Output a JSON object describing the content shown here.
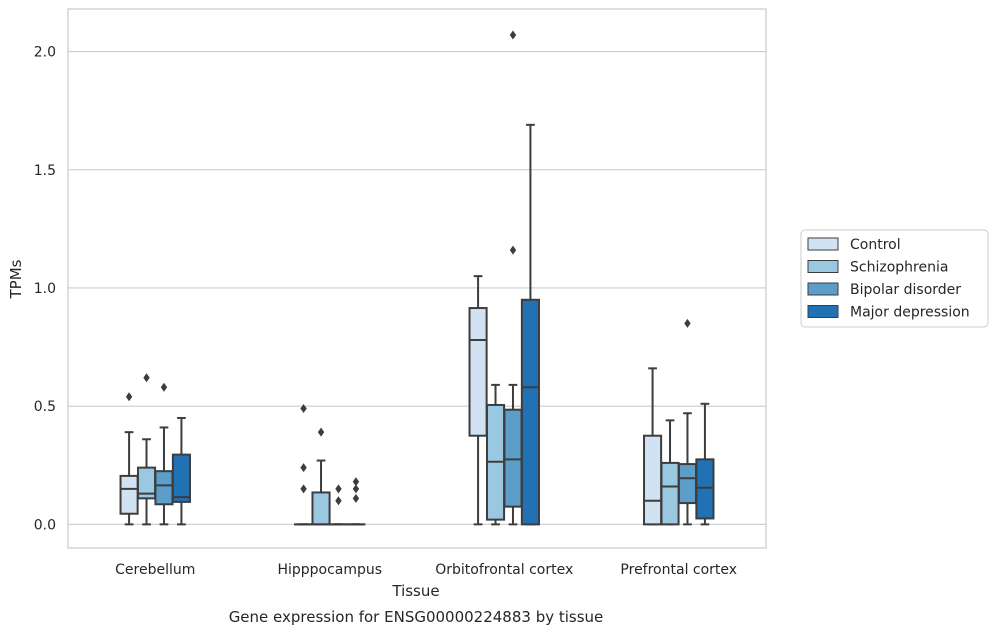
{
  "caption": "Gene expression for ENSG00000224883 by tissue",
  "chart_data": {
    "type": "box",
    "xlabel": "Tissue",
    "ylabel": "TPMs",
    "ylim": [
      -0.1,
      2.18
    ],
    "yticks": [
      0.0,
      0.5,
      1.0,
      1.5,
      2.0
    ],
    "ytick_labels": [
      "0.0",
      "0.5",
      "1.0",
      "1.5",
      "2.0"
    ],
    "grid": "y",
    "legend_position": "right",
    "categories": [
      "Cerebellum",
      "Hipppocampus",
      "Orbitofrontal cortex",
      "Prefrontal cortex"
    ],
    "series": [
      {
        "name": "Control",
        "color": "#d1e2f2",
        "boxes": [
          {
            "whislo": 0.0,
            "q1": 0.045,
            "med": 0.15,
            "q3": 0.205,
            "whishi": 0.39,
            "fliers": [
              0.54
            ]
          },
          {
            "whislo": 0.0,
            "q1": 0.0,
            "med": 0.0,
            "q3": 0.0,
            "whishi": 0.0,
            "fliers": [
              0.49,
              0.24,
              0.15
            ]
          },
          {
            "whislo": 0.0,
            "q1": 0.375,
            "med": 0.78,
            "q3": 0.915,
            "whishi": 1.05,
            "fliers": []
          },
          {
            "whislo": 0.0,
            "q1": 0.0,
            "med": 0.1,
            "q3": 0.375,
            "whishi": 0.66,
            "fliers": []
          }
        ]
      },
      {
        "name": "Schizophrenia",
        "color": "#9ac8e0",
        "boxes": [
          {
            "whislo": 0.0,
            "q1": 0.11,
            "med": 0.13,
            "q3": 0.24,
            "whishi": 0.36,
            "fliers": [
              0.62
            ]
          },
          {
            "whislo": 0.0,
            "q1": 0.0,
            "med": 0.0,
            "q3": 0.135,
            "whishi": 0.27,
            "fliers": [
              0.39
            ]
          },
          {
            "whislo": 0.0,
            "q1": 0.02,
            "med": 0.265,
            "q3": 0.505,
            "whishi": 0.59,
            "fliers": []
          },
          {
            "whislo": 0.0,
            "q1": 0.0,
            "med": 0.16,
            "q3": 0.26,
            "whishi": 0.44,
            "fliers": []
          }
        ]
      },
      {
        "name": "Bipolar disorder",
        "color": "#5a9ec9",
        "boxes": [
          {
            "whislo": 0.0,
            "q1": 0.085,
            "med": 0.165,
            "q3": 0.225,
            "whishi": 0.41,
            "fliers": [
              0.58
            ]
          },
          {
            "whislo": 0.0,
            "q1": 0.0,
            "med": 0.0,
            "q3": 0.0,
            "whishi": 0.0,
            "fliers": [
              0.15,
              0.1
            ]
          },
          {
            "whislo": 0.0,
            "q1": 0.075,
            "med": 0.275,
            "q3": 0.485,
            "whishi": 0.59,
            "fliers": [
              2.07,
              1.16
            ]
          },
          {
            "whislo": 0.0,
            "q1": 0.09,
            "med": 0.195,
            "q3": 0.255,
            "whishi": 0.47,
            "fliers": [
              0.85
            ]
          }
        ]
      },
      {
        "name": "Major depression",
        "color": "#2171b5",
        "boxes": [
          {
            "whislo": 0.0,
            "q1": 0.095,
            "med": 0.115,
            "q3": 0.295,
            "whishi": 0.45,
            "fliers": []
          },
          {
            "whislo": 0.0,
            "q1": 0.0,
            "med": 0.0,
            "q3": 0.0,
            "whishi": 0.0,
            "fliers": [
              0.18,
              0.15,
              0.11
            ]
          },
          {
            "whislo": 0.0,
            "q1": 0.0,
            "med": 0.58,
            "q3": 0.95,
            "whishi": 1.69,
            "fliers": []
          },
          {
            "whislo": 0.0,
            "q1": 0.025,
            "med": 0.155,
            "q3": 0.275,
            "whishi": 0.51,
            "fliers": []
          }
        ]
      }
    ]
  }
}
